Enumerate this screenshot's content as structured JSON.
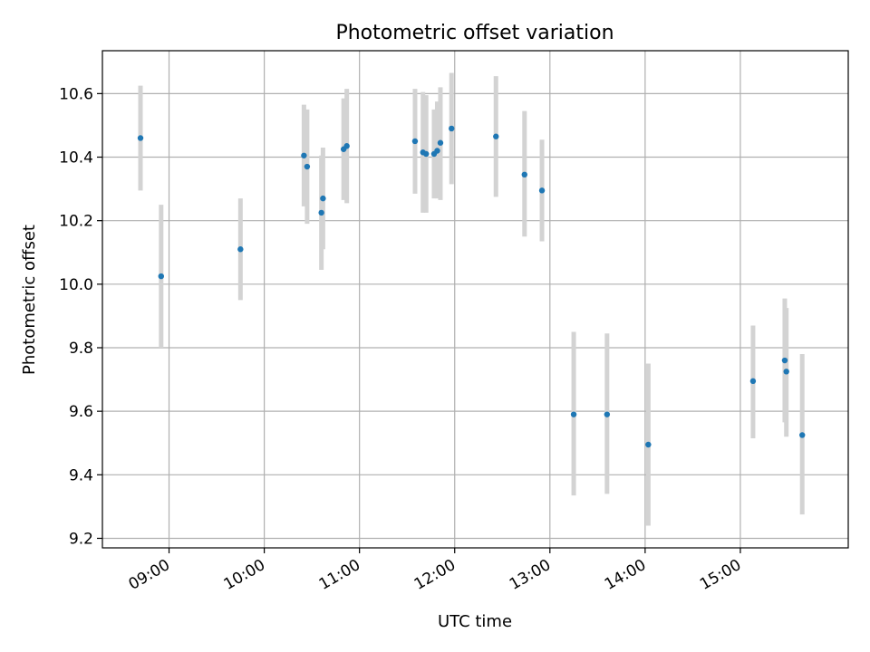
{
  "chart_data": {
    "type": "scatter",
    "title": "Photometric offset variation",
    "xlabel": "UTC time",
    "ylabel": "Photometric offset",
    "x_tick_labels": [
      "09:00",
      "10:00",
      "11:00",
      "12:00",
      "13:00",
      "14:00",
      "15:00"
    ],
    "y_tick_labels": [
      "9.2",
      "9.4",
      "9.6",
      "9.8",
      "10.0",
      "10.2",
      "10.4",
      "10.6"
    ],
    "xlim": [
      "08:18",
      "16:08"
    ],
    "ylim": [
      9.17,
      10.735
    ],
    "grid": true,
    "point_color": "#1f77b4",
    "errorbar_color": "#d3d3d3",
    "points": [
      {
        "x": "08:42",
        "y": 10.46,
        "yerr_low": 10.295,
        "yerr_high": 10.625
      },
      {
        "x": "08:55",
        "y": 10.025,
        "yerr_low": 9.8,
        "yerr_high": 10.25
      },
      {
        "x": "09:45",
        "y": 10.11,
        "yerr_low": 9.95,
        "yerr_high": 10.27
      },
      {
        "x": "10:25",
        "y": 10.405,
        "yerr_low": 10.245,
        "yerr_high": 10.565
      },
      {
        "x": "10:27",
        "y": 10.37,
        "yerr_low": 10.19,
        "yerr_high": 10.55
      },
      {
        "x": "10:36",
        "y": 10.225,
        "yerr_low": 10.045,
        "yerr_high": 10.405
      },
      {
        "x": "10:37",
        "y": 10.27,
        "yerr_low": 10.11,
        "yerr_high": 10.43
      },
      {
        "x": "10:50",
        "y": 10.425,
        "yerr_low": 10.265,
        "yerr_high": 10.585
      },
      {
        "x": "10:52",
        "y": 10.435,
        "yerr_low": 10.255,
        "yerr_high": 10.615
      },
      {
        "x": "11:35",
        "y": 10.45,
        "yerr_low": 10.285,
        "yerr_high": 10.615
      },
      {
        "x": "11:40",
        "y": 10.415,
        "yerr_low": 10.225,
        "yerr_high": 10.605
      },
      {
        "x": "11:42",
        "y": 10.41,
        "yerr_low": 10.225,
        "yerr_high": 10.595
      },
      {
        "x": "11:47",
        "y": 10.41,
        "yerr_low": 10.27,
        "yerr_high": 10.55
      },
      {
        "x": "11:49",
        "y": 10.42,
        "yerr_low": 10.27,
        "yerr_high": 10.575
      },
      {
        "x": "11:51",
        "y": 10.445,
        "yerr_low": 10.265,
        "yerr_high": 10.62
      },
      {
        "x": "11:58",
        "y": 10.49,
        "yerr_low": 10.315,
        "yerr_high": 10.665
      },
      {
        "x": "12:26",
        "y": 10.465,
        "yerr_low": 10.275,
        "yerr_high": 10.655
      },
      {
        "x": "12:44",
        "y": 10.345,
        "yerr_low": 10.15,
        "yerr_high": 10.545
      },
      {
        "x": "12:55",
        "y": 10.295,
        "yerr_low": 10.135,
        "yerr_high": 10.455
      },
      {
        "x": "13:15",
        "y": 9.59,
        "yerr_low": 9.335,
        "yerr_high": 9.85
      },
      {
        "x": "13:36",
        "y": 9.59,
        "yerr_low": 9.34,
        "yerr_high": 9.845
      },
      {
        "x": "14:02",
        "y": 9.495,
        "yerr_low": 9.24,
        "yerr_high": 9.75
      },
      {
        "x": "15:08",
        "y": 9.695,
        "yerr_low": 9.515,
        "yerr_high": 9.87
      },
      {
        "x": "15:28",
        "y": 9.76,
        "yerr_low": 9.565,
        "yerr_high": 9.955
      },
      {
        "x": "15:29",
        "y": 9.725,
        "yerr_low": 9.52,
        "yerr_high": 9.925
      },
      {
        "x": "15:39",
        "y": 9.525,
        "yerr_low": 9.275,
        "yerr_high": 9.78
      }
    ]
  }
}
